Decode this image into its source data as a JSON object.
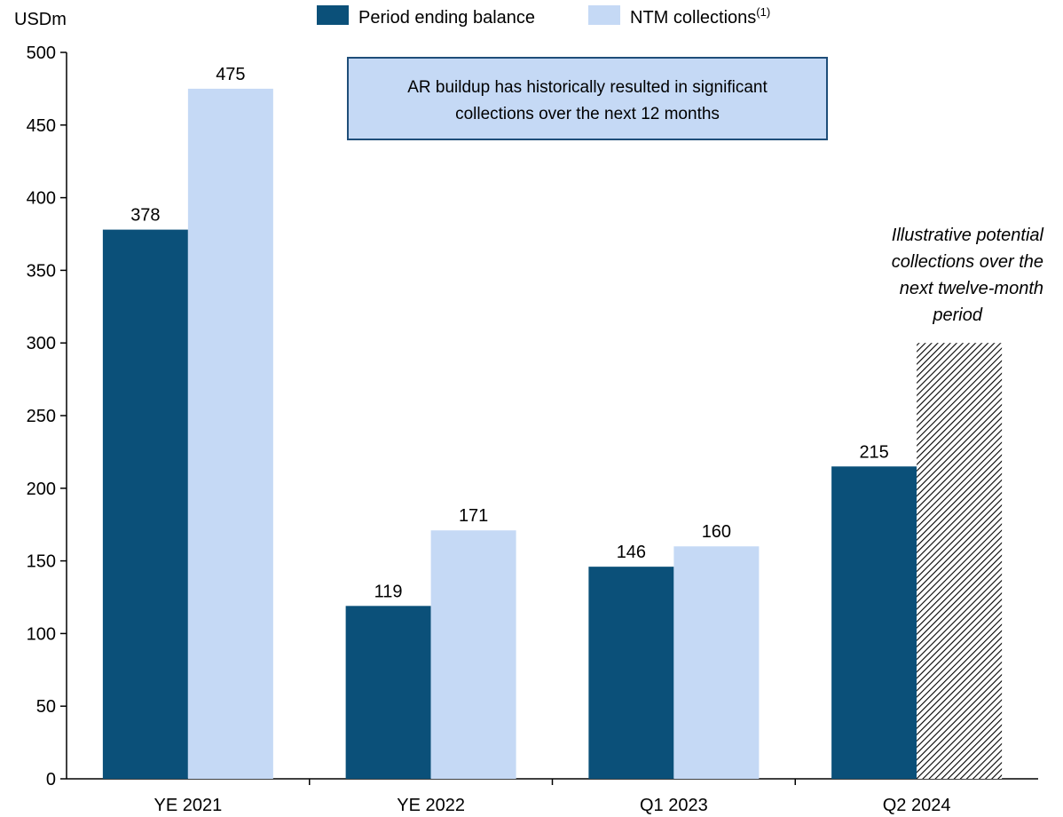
{
  "chart_data": {
    "type": "bar",
    "unit_label": "USDm",
    "categories": [
      "YE 2021",
      "YE 2022",
      "Q1 2023",
      "Q2 2024"
    ],
    "series": [
      {
        "name": "Period ending balance",
        "values": [
          378,
          119,
          146,
          215
        ],
        "color": "#0b5079"
      },
      {
        "name": "NTM collections",
        "name_superscript": "(1)",
        "values": [
          475,
          171,
          160,
          null
        ],
        "color": "#c5d9f5"
      }
    ],
    "illustrative_bar": {
      "category": "Q2 2024",
      "value": 300,
      "pattern": "diagonal-hatch"
    },
    "ylim": [
      0,
      500
    ],
    "yticks": [
      0,
      50,
      100,
      150,
      200,
      250,
      300,
      350,
      400,
      450,
      500
    ],
    "grid": false,
    "legend_position": "top",
    "callout_box": {
      "lines": [
        "AR buildup has historically resulted in significant",
        "collections over the next 12 months"
      ],
      "fill": "#c5d9f5",
      "border": "#1f4e79"
    },
    "annotation": {
      "lines": [
        "Illustrative potential",
        "collections over the",
        "next twelve-month",
        "period"
      ],
      "style": "italic"
    }
  }
}
